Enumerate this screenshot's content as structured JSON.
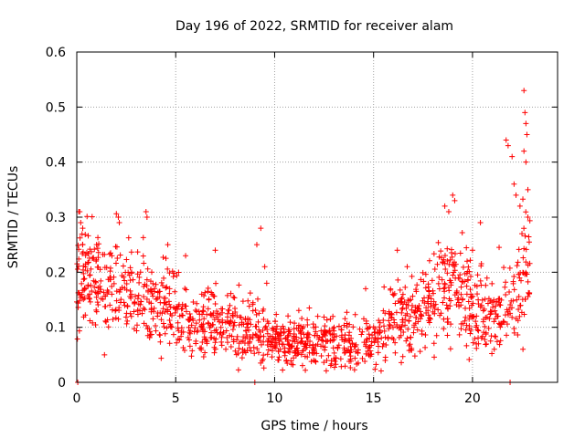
{
  "chart_data": {
    "type": "scatter",
    "title": "Day 196 of 2022, SRMTID for receiver alam",
    "xlabel": "GPS time / hours",
    "ylabel": "SRMTID / TECUs",
    "xlim": [
      0,
      24.3
    ],
    "ylim": [
      0,
      0.6
    ],
    "x_ticks": [
      "0",
      "5",
      "10",
      "15",
      "20"
    ],
    "x_tick_values": [
      0,
      5,
      10,
      15,
      20
    ],
    "y_ticks": [
      "0",
      "0.1",
      "0.2",
      "0.3",
      "0.4",
      "0.5",
      "0.6"
    ],
    "y_tick_values": [
      0,
      0.1,
      0.2,
      0.3,
      0.4,
      0.5,
      0.6
    ],
    "grid": true,
    "marker": "+",
    "series": [
      {
        "name": "SRMTID",
        "color": "#ff0000",
        "envelope": {
          "x": [
            0,
            0.5,
            1,
            1.5,
            2,
            2.5,
            3,
            3.5,
            4,
            4.5,
            5,
            5.5,
            6,
            6.5,
            7,
            7.5,
            8,
            8.5,
            9,
            9.5,
            10,
            10.5,
            11,
            11.5,
            12,
            12.5,
            13,
            13.5,
            14,
            14.5,
            15,
            15.5,
            16,
            16.5,
            17,
            17.5,
            18,
            18.5,
            19,
            19.5,
            20,
            20.5,
            21,
            21.5,
            22,
            22.5,
            22.9
          ],
          "y": [
            0.17,
            0.19,
            0.18,
            0.17,
            0.18,
            0.16,
            0.15,
            0.16,
            0.14,
            0.13,
            0.12,
            0.12,
            0.11,
            0.11,
            0.1,
            0.1,
            0.1,
            0.095,
            0.085,
            0.08,
            0.075,
            0.07,
            0.07,
            0.075,
            0.075,
            0.075,
            0.07,
            0.07,
            0.065,
            0.07,
            0.08,
            0.09,
            0.11,
            0.12,
            0.12,
            0.13,
            0.14,
            0.17,
            0.17,
            0.16,
            0.15,
            0.13,
            0.12,
            0.13,
            0.15,
            0.19,
            0.22
          ],
          "spread": [
            0.06,
            0.06,
            0.055,
            0.05,
            0.055,
            0.05,
            0.05,
            0.05,
            0.045,
            0.045,
            0.045,
            0.04,
            0.04,
            0.04,
            0.04,
            0.038,
            0.035,
            0.035,
            0.035,
            0.032,
            0.028,
            0.025,
            0.025,
            0.025,
            0.026,
            0.028,
            0.028,
            0.028,
            0.03,
            0.032,
            0.035,
            0.04,
            0.045,
            0.045,
            0.045,
            0.045,
            0.05,
            0.055,
            0.06,
            0.06,
            0.055,
            0.05,
            0.045,
            0.045,
            0.06,
            0.07,
            0.07
          ]
        },
        "point_count": 1400,
        "points": [
          [
            0.05,
            0.0
          ],
          [
            0.1,
            0.31
          ],
          [
            0.15,
            0.31
          ],
          [
            0.2,
            0.29
          ],
          [
            0.3,
            0.25
          ],
          [
            0.3,
            0.28
          ],
          [
            1.0,
            0.25
          ],
          [
            1.4,
            0.05
          ],
          [
            2.1,
            0.3
          ],
          [
            2.15,
            0.29
          ],
          [
            3.5,
            0.31
          ],
          [
            3.55,
            0.3
          ],
          [
            4.6,
            0.25
          ],
          [
            5.5,
            0.23
          ],
          [
            7.0,
            0.24
          ],
          [
            9.0,
            0.0
          ],
          [
            9.1,
            0.25
          ],
          [
            9.3,
            0.28
          ],
          [
            9.5,
            0.21
          ],
          [
            9.6,
            0.18
          ],
          [
            14.6,
            0.17
          ],
          [
            16.2,
            0.24
          ],
          [
            16.7,
            0.21
          ],
          [
            18.6,
            0.32
          ],
          [
            18.8,
            0.31
          ],
          [
            19.0,
            0.34
          ],
          [
            19.1,
            0.33
          ],
          [
            20.0,
            0.24
          ],
          [
            20.4,
            0.29
          ],
          [
            20.3,
            0.07
          ],
          [
            21.1,
            0.06
          ],
          [
            21.7,
            0.44
          ],
          [
            21.8,
            0.43
          ],
          [
            21.9,
            0.0
          ],
          [
            22.0,
            0.41
          ],
          [
            22.1,
            0.36
          ],
          [
            22.2,
            0.34
          ],
          [
            22.4,
            0.32
          ],
          [
            22.5,
            0.27
          ],
          [
            22.55,
            0.06
          ],
          [
            22.6,
            0.53
          ],
          [
            22.65,
            0.49
          ],
          [
            22.7,
            0.47
          ],
          [
            22.75,
            0.45
          ],
          [
            22.6,
            0.42
          ],
          [
            22.7,
            0.4
          ],
          [
            22.8,
            0.35
          ],
          [
            22.8,
            0.3
          ]
        ]
      }
    ]
  }
}
